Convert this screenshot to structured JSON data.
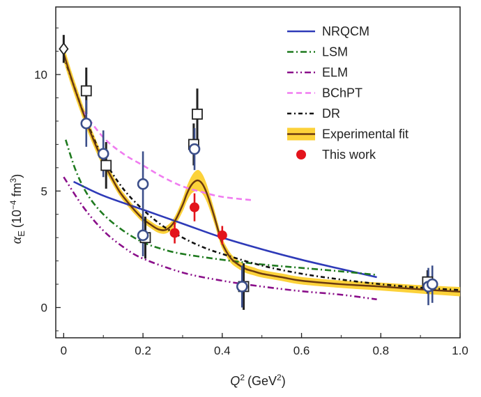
{
  "chart_data": {
    "type": "line",
    "xlabel": {
      "main": "Q",
      "sup": "2",
      "units": "(GeV",
      "units_sup": "2",
      "units_close": ")"
    },
    "ylabel": {
      "main": "α",
      "sub": "E",
      "units": "(10",
      "units_sup": "−4",
      "units_mid": " fm",
      "units_sup2": "3",
      "units_close": ")"
    },
    "xlim": [
      -0.02,
      1.0
    ],
    "ylim": [
      -1.3,
      12.9
    ],
    "xticks": [
      0,
      0.2,
      0.4,
      0.6,
      0.8,
      1.0
    ],
    "xtick_labels": [
      "0",
      "0.2",
      "0.4",
      "0.6",
      "0.8",
      "1.0"
    ],
    "yticks": [
      0,
      5,
      10
    ],
    "ytick_labels": [
      "0",
      "5",
      "10"
    ],
    "colors": {
      "nrqcm": "#2e3ab8",
      "lsm": "#1f7a1f",
      "elm": "#8a0f8a",
      "bchpt": "#f07cf0",
      "dr": "#111111",
      "fit_band": "#fcd23a",
      "fit_line": "#6b3a10",
      "this_work": "#e3141c",
      "circle": "#3c4f8a",
      "square": "#222222"
    },
    "series": [
      {
        "name": "NRQCM",
        "style": "solid",
        "x": [
          0.025,
          0.1,
          0.2,
          0.3,
          0.4,
          0.5,
          0.6,
          0.7,
          0.79
        ],
        "y": [
          5.4,
          4.8,
          4.2,
          3.6,
          3.0,
          2.5,
          2.05,
          1.65,
          1.3
        ]
      },
      {
        "name": "LSM",
        "style": "dash-dot",
        "x": [
          0.005,
          0.03,
          0.06,
          0.1,
          0.15,
          0.2,
          0.25,
          0.3,
          0.4,
          0.5,
          0.6,
          0.7,
          0.79
        ],
        "y": [
          7.2,
          5.9,
          4.85,
          4.0,
          3.3,
          2.8,
          2.5,
          2.3,
          2.05,
          1.85,
          1.7,
          1.55,
          1.4
        ]
      },
      {
        "name": "ELM",
        "style": "dash-dot-dot",
        "x": [
          0.0,
          0.05,
          0.1,
          0.15,
          0.2,
          0.3,
          0.4,
          0.5,
          0.6,
          0.7,
          0.79
        ],
        "y": [
          5.6,
          4.3,
          3.3,
          2.6,
          2.1,
          1.5,
          1.15,
          0.9,
          0.7,
          0.55,
          0.35
        ]
      },
      {
        "name": "BChPT",
        "style": "dashed",
        "x": [
          0.05,
          0.1,
          0.15,
          0.2,
          0.25,
          0.3,
          0.35,
          0.4,
          0.48
        ],
        "y": [
          8.4,
          7.3,
          6.6,
          6.1,
          5.6,
          5.2,
          4.95,
          4.75,
          4.6
        ]
      },
      {
        "name": "DR",
        "style": "dash-dot-dense",
        "x": [
          0.0,
          0.03,
          0.06,
          0.1,
          0.15,
          0.2,
          0.25,
          0.3,
          0.35,
          0.4,
          0.5,
          0.6,
          0.7,
          0.8,
          0.9,
          1.0
        ],
        "y": [
          10.8,
          9.3,
          7.9,
          6.4,
          5.1,
          4.2,
          3.5,
          3.0,
          2.6,
          2.3,
          1.8,
          1.45,
          1.2,
          1.0,
          0.85,
          0.75
        ]
      }
    ],
    "fit": {
      "name": "Experimental fit",
      "x": [
        0.0,
        0.02,
        0.04,
        0.06,
        0.08,
        0.1,
        0.12,
        0.14,
        0.16,
        0.18,
        0.2,
        0.22,
        0.24,
        0.26,
        0.28,
        0.3,
        0.31,
        0.32,
        0.33,
        0.34,
        0.35,
        0.36,
        0.37,
        0.38,
        0.39,
        0.4,
        0.42,
        0.44,
        0.46,
        0.48,
        0.5,
        0.55,
        0.6,
        0.7,
        0.8,
        0.9,
        1.0
      ],
      "y": [
        10.9,
        9.8,
        8.8,
        7.85,
        7.0,
        6.25,
        5.6,
        5.0,
        4.55,
        4.15,
        3.8,
        3.55,
        3.35,
        3.35,
        3.7,
        4.4,
        4.85,
        5.2,
        5.4,
        5.45,
        5.3,
        4.95,
        4.45,
        3.9,
        3.3,
        2.75,
        2.15,
        1.85,
        1.65,
        1.55,
        1.45,
        1.3,
        1.15,
        1.0,
        0.9,
        0.78,
        0.68
      ],
      "band": [
        0.35,
        0.32,
        0.3,
        0.28,
        0.25,
        0.22,
        0.2,
        0.18,
        0.17,
        0.16,
        0.15,
        0.15,
        0.15,
        0.16,
        0.2,
        0.28,
        0.32,
        0.36,
        0.42,
        0.45,
        0.42,
        0.38,
        0.33,
        0.3,
        0.26,
        0.22,
        0.2,
        0.18,
        0.17,
        0.17,
        0.16,
        0.16,
        0.16,
        0.16,
        0.17,
        0.18,
        0.2
      ]
    },
    "this_work": {
      "name": "This work",
      "points": [
        {
          "x": 0.28,
          "y": 3.2,
          "err": 0.45
        },
        {
          "x": 0.33,
          "y": 4.3,
          "err": 0.6
        },
        {
          "x": 0.4,
          "y": 3.1,
          "err": 0.4
        }
      ]
    },
    "open_circles": [
      {
        "x": 0.057,
        "y": 7.9,
        "err": 1.0
      },
      {
        "x": 0.1,
        "y": 6.6,
        "err": 1.0
      },
      {
        "x": 0.2,
        "y": 5.3,
        "err": 1.4
      },
      {
        "x": 0.2,
        "y": 3.1,
        "err": 0.9
      },
      {
        "x": 0.33,
        "y": 6.8,
        "err": 0.9
      },
      {
        "x": 0.45,
        "y": 0.9,
        "err": 0.9
      },
      {
        "x": 0.92,
        "y": 0.9,
        "err": 0.8
      },
      {
        "x": 0.93,
        "y": 1.0,
        "err": 0.8
      }
    ],
    "open_squares": [
      {
        "x": 0.057,
        "y": 9.3,
        "err": 1.0
      },
      {
        "x": 0.107,
        "y": 6.1,
        "err": 1.0
      },
      {
        "x": 0.206,
        "y": 3.0,
        "err": 0.9
      },
      {
        "x": 0.328,
        "y": 7.0,
        "err": 0.9
      },
      {
        "x": 0.337,
        "y": 8.3,
        "err": 1.1
      },
      {
        "x": 0.454,
        "y": 0.9,
        "err": 1.0
      },
      {
        "x": 0.918,
        "y": 1.1,
        "err": 0.5
      }
    ],
    "open_diamonds": [
      {
        "x": 0.0,
        "y": 11.1,
        "err": 0.6
      }
    ],
    "legend": [
      {
        "key": "nrqcm",
        "label": "NRQCM"
      },
      {
        "key": "lsm",
        "label": "LSM"
      },
      {
        "key": "elm",
        "label": "ELM"
      },
      {
        "key": "bchpt",
        "label": "BChPT"
      },
      {
        "key": "dr",
        "label": "DR"
      },
      {
        "key": "fit",
        "label": "Experimental fit"
      },
      {
        "key": "this_work",
        "label": "This work"
      }
    ]
  }
}
